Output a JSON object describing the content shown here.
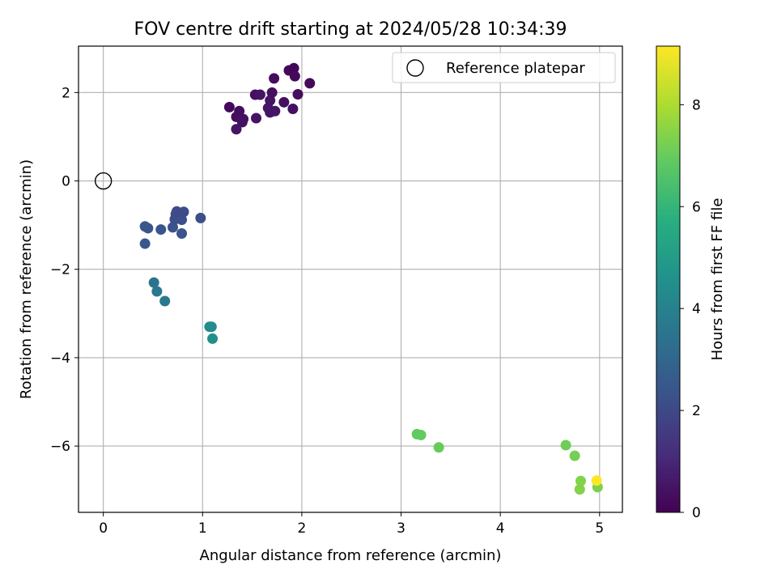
{
  "chart_data": {
    "type": "scatter",
    "title": "FOV centre drift starting at 2024/05/28 10:34:39",
    "xlabel": "Angular distance from reference (arcmin)",
    "ylabel": "Rotation from reference (arcmin)",
    "xlim": [
      -0.25,
      5.23
    ],
    "ylim": [
      -7.5,
      3.05
    ],
    "xticks": [
      0,
      1,
      2,
      3,
      4,
      5
    ],
    "yticks": [
      -6,
      -4,
      -2,
      0,
      2
    ],
    "xtick_labels": [
      "0",
      "1",
      "2",
      "3",
      "4",
      "5"
    ],
    "ytick_labels": [
      "−6",
      "−4",
      "−2",
      "0",
      "2"
    ],
    "grid": true,
    "legend": {
      "placement": "top-right",
      "label": "Reference platepar"
    },
    "colorbar": {
      "label": "Hours from first FF file",
      "range": [
        0,
        9.15
      ],
      "ticks": [
        0,
        2,
        4,
        6,
        8
      ],
      "tick_labels": [
        "0",
        "2",
        "4",
        "6",
        "8"
      ],
      "colormap": "viridis"
    },
    "reference_point": {
      "x": 0,
      "y": 0
    },
    "points": [
      {
        "x": 1.27,
        "y": 1.67,
        "hours": 0.2
      },
      {
        "x": 1.34,
        "y": 1.45,
        "hours": 0.3
      },
      {
        "x": 1.37,
        "y": 1.58,
        "hours": 0.3
      },
      {
        "x": 1.4,
        "y": 1.33,
        "hours": 0.4
      },
      {
        "x": 1.41,
        "y": 1.4,
        "hours": 0.4
      },
      {
        "x": 1.34,
        "y": 1.17,
        "hours": 0.5
      },
      {
        "x": 1.53,
        "y": 1.95,
        "hours": 0.4
      },
      {
        "x": 1.54,
        "y": 1.42,
        "hours": 0.5
      },
      {
        "x": 1.58,
        "y": 1.95,
        "hours": 0.5
      },
      {
        "x": 1.66,
        "y": 1.65,
        "hours": 0.5
      },
      {
        "x": 1.68,
        "y": 1.82,
        "hours": 0.5
      },
      {
        "x": 1.68,
        "y": 1.55,
        "hours": 0.5
      },
      {
        "x": 1.7,
        "y": 2.0,
        "hours": 0.4
      },
      {
        "x": 1.72,
        "y": 2.32,
        "hours": 0.3
      },
      {
        "x": 1.73,
        "y": 1.58,
        "hours": 0.5
      },
      {
        "x": 1.82,
        "y": 1.78,
        "hours": 0.4
      },
      {
        "x": 1.87,
        "y": 2.5,
        "hours": 0.2
      },
      {
        "x": 1.92,
        "y": 2.55,
        "hours": 0.1
      },
      {
        "x": 1.93,
        "y": 2.37,
        "hours": 0.2
      },
      {
        "x": 1.91,
        "y": 1.63,
        "hours": 0.4
      },
      {
        "x": 1.96,
        "y": 1.96,
        "hours": 0.3
      },
      {
        "x": 2.08,
        "y": 2.21,
        "hours": 0.2
      },
      {
        "x": 0.42,
        "y": -1.03,
        "hours": 2.4
      },
      {
        "x": 0.45,
        "y": -1.07,
        "hours": 2.4
      },
      {
        "x": 0.42,
        "y": -1.42,
        "hours": 2.5
      },
      {
        "x": 0.58,
        "y": -1.1,
        "hours": 2.4
      },
      {
        "x": 0.7,
        "y": -1.05,
        "hours": 2.3
      },
      {
        "x": 0.72,
        "y": -0.87,
        "hours": 2.2
      },
      {
        "x": 0.73,
        "y": -0.75,
        "hours": 2.1
      },
      {
        "x": 0.74,
        "y": -0.69,
        "hours": 2.1
      },
      {
        "x": 0.77,
        "y": -0.76,
        "hours": 2.1
      },
      {
        "x": 0.79,
        "y": -0.88,
        "hours": 2.2
      },
      {
        "x": 0.81,
        "y": -0.7,
        "hours": 2.1
      },
      {
        "x": 0.79,
        "y": -1.19,
        "hours": 2.4
      },
      {
        "x": 0.98,
        "y": -0.84,
        "hours": 2.2
      },
      {
        "x": 0.51,
        "y": -2.3,
        "hours": 3.5
      },
      {
        "x": 0.54,
        "y": -2.5,
        "hours": 3.6
      },
      {
        "x": 0.62,
        "y": -2.72,
        "hours": 3.7
      },
      {
        "x": 1.07,
        "y": -3.3,
        "hours": 4.4
      },
      {
        "x": 1.09,
        "y": -3.3,
        "hours": 4.4
      },
      {
        "x": 1.1,
        "y": -3.57,
        "hours": 4.5
      },
      {
        "x": 3.16,
        "y": -5.73,
        "hours": 6.9
      },
      {
        "x": 3.2,
        "y": -5.75,
        "hours": 6.9
      },
      {
        "x": 3.38,
        "y": -6.03,
        "hours": 7.0
      },
      {
        "x": 4.66,
        "y": -5.98,
        "hours": 7.1
      },
      {
        "x": 4.75,
        "y": -6.22,
        "hours": 7.2
      },
      {
        "x": 4.81,
        "y": -6.79,
        "hours": 7.4
      },
      {
        "x": 4.8,
        "y": -6.98,
        "hours": 7.4
      },
      {
        "x": 4.98,
        "y": -6.93,
        "hours": 7.3
      },
      {
        "x": 4.97,
        "y": -6.78,
        "hours": 9.15
      }
    ]
  }
}
